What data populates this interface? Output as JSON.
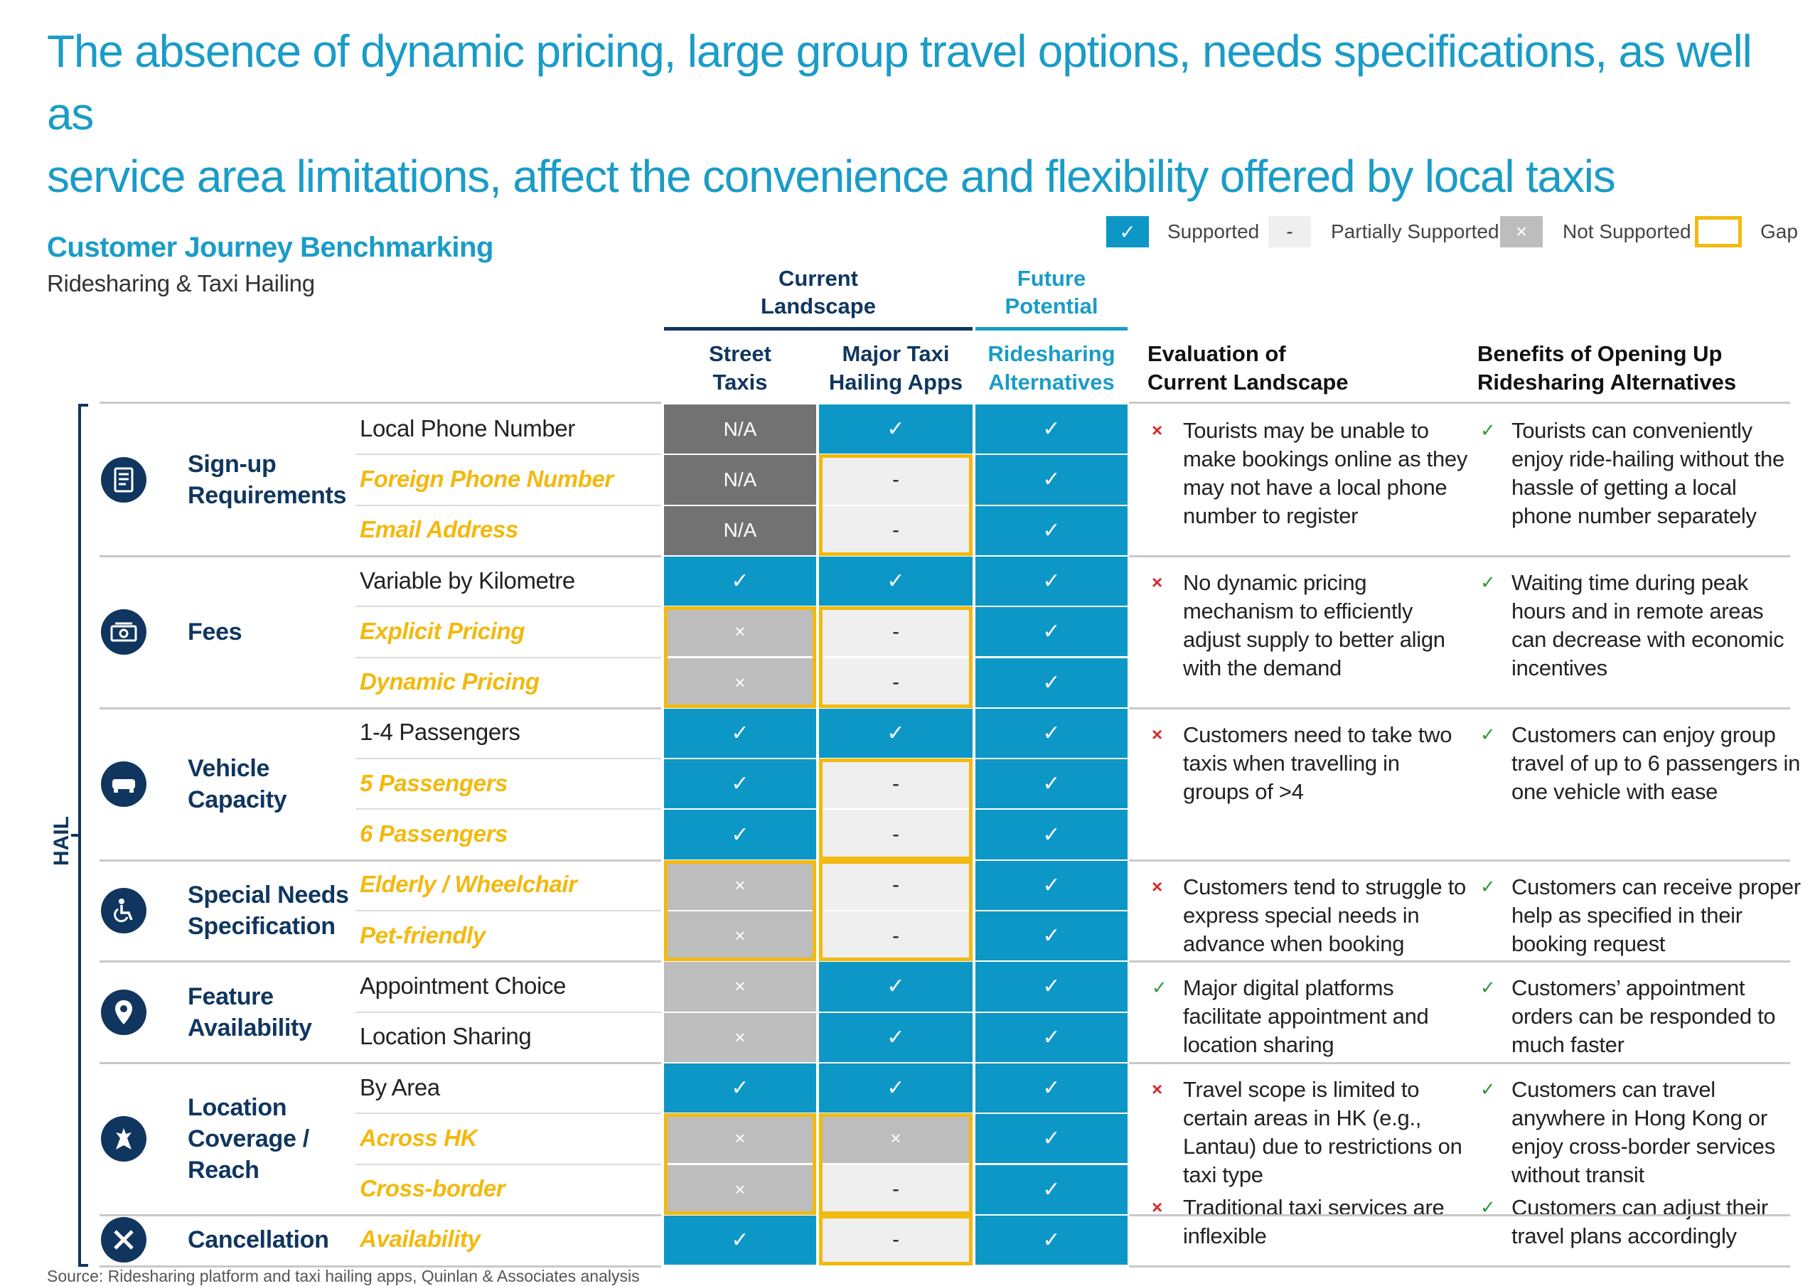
{
  "title": "The absence of dynamic pricing, large group travel options, needs specifications, as well as\nservice area limitations, affect the convenience and flexibility offered by local taxis",
  "subtitle": "Customer Journey Benchmarking",
  "subtitle2": "Ridesharing & Taxi Hailing",
  "legend": {
    "supported": "Supported",
    "partial": "Partially Supported",
    "not_supported": "Not Supported",
    "gap": "Gap",
    "check_symbol": "✓",
    "dash_symbol": "-",
    "x_symbol": "×"
  },
  "group_headers": {
    "current": "Current\nLandscape",
    "future": "Future\nPotential"
  },
  "columns": {
    "street": "Street\nTaxis",
    "major": "Major Taxi\nHailing Apps",
    "ride": "Ridesharing\nAlternatives",
    "eval": "Evaluation of\nCurrent Landscape",
    "benefit": "Benefits of Opening Up\nRidesharing Alternatives"
  },
  "side_label": "HAIL",
  "colors": {
    "supported": "#0d97c6",
    "partial": "#efefef",
    "not_supported": "#bdbdbd",
    "na": "#727272",
    "gap": "#f2b90f",
    "navy": "#10365f",
    "teal": "#1a9cc7"
  },
  "groups": [
    {
      "label": "Sign-up\nRequirements",
      "icon": "document-icon",
      "rows": [
        {
          "criterion": "Local Phone Number",
          "gap": false,
          "street": "N/A",
          "major": "✓",
          "ride": "✓"
        },
        {
          "criterion": "Foreign Phone Number",
          "gap": true,
          "street": "N/A",
          "major": "-",
          "ride": "✓"
        },
        {
          "criterion": "Email Address",
          "gap": true,
          "street": "N/A",
          "major": "-",
          "ride": "✓"
        }
      ],
      "eval": [
        {
          "mark": "×",
          "text": "Tourists may be unable to\nmake bookings online as they\nmay not have a local phone\nnumber to register"
        }
      ],
      "benefit": [
        {
          "mark": "✓",
          "text": "Tourists can conveniently\nenjoy ride-hailing without the\nhassle of getting a local\nphone number separately"
        }
      ]
    },
    {
      "label": "Fees",
      "icon": "cash-icon",
      "rows": [
        {
          "criterion": "Variable by Kilometre",
          "gap": false,
          "street": "✓",
          "major": "✓",
          "ride": "✓"
        },
        {
          "criterion": "Explicit Pricing",
          "gap": true,
          "street": "×",
          "major": "-",
          "ride": "✓"
        },
        {
          "criterion": "Dynamic Pricing",
          "gap": true,
          "street": "×",
          "major": "-",
          "ride": "✓"
        }
      ],
      "eval": [
        {
          "mark": "×",
          "text": "No dynamic pricing\nmechanism to efficiently\nadjust supply to better align\nwith the demand"
        }
      ],
      "benefit": [
        {
          "mark": "✓",
          "text": "Waiting time during peak\nhours and in remote areas\ncan decrease with economic\nincentives"
        }
      ]
    },
    {
      "label": "Vehicle\nCapacity",
      "icon": "vehicle-icon",
      "rows": [
        {
          "criterion": "1-4 Passengers",
          "gap": false,
          "street": "✓",
          "major": "✓",
          "ride": "✓"
        },
        {
          "criterion": "5 Passengers",
          "gap": true,
          "street": "✓",
          "major": "-",
          "ride": "✓"
        },
        {
          "criterion": "6 Passengers",
          "gap": true,
          "street": "✓",
          "major": "-",
          "ride": "✓"
        }
      ],
      "eval": [
        {
          "mark": "×",
          "text": "Customers need to take two\ntaxis when travelling in\ngroups of >4"
        }
      ],
      "benefit": [
        {
          "mark": "✓",
          "text": "Customers can enjoy group\ntravel of up to 6 passengers in\none vehicle with ease"
        }
      ]
    },
    {
      "label": "Special Needs\nSpecification",
      "icon": "wheelchair-icon",
      "rows": [
        {
          "criterion": "Elderly / Wheelchair",
          "gap": true,
          "street": "×",
          "major": "-",
          "ride": "✓"
        },
        {
          "criterion": "Pet-friendly",
          "gap": true,
          "street": "×",
          "major": "-",
          "ride": "✓"
        }
      ],
      "eval": [
        {
          "mark": "×",
          "text": "Customers tend to struggle to\nexpress special needs in\nadvance when booking"
        }
      ],
      "benefit": [
        {
          "mark": "✓",
          "text": "Customers can receive proper\nhelp as specified in their\nbooking request"
        }
      ]
    },
    {
      "label": "Feature\nAvailability",
      "icon": "location-pin-icon",
      "rows": [
        {
          "criterion": "Appointment Choice",
          "gap": false,
          "street": "×",
          "major": "✓",
          "ride": "✓"
        },
        {
          "criterion": "Location Sharing",
          "gap": false,
          "street": "×",
          "major": "✓",
          "ride": "✓"
        }
      ],
      "eval": [
        {
          "mark": "✓",
          "text": "Major digital platforms\nfacilitate appointment and\nlocation sharing"
        }
      ],
      "benefit": [
        {
          "mark": "✓",
          "text": "Customers’ appointment\norders can be responded to\nmuch faster"
        }
      ]
    },
    {
      "label": "Location\nCoverage /\nReach",
      "icon": "map-icon",
      "rows": [
        {
          "criterion": "By Area",
          "gap": false,
          "street": "✓",
          "major": "✓",
          "ride": "✓"
        },
        {
          "criterion": "Across HK",
          "gap": true,
          "street": "×",
          "major": "×",
          "ride": "✓"
        },
        {
          "criterion": "Cross-border",
          "gap": true,
          "street": "×",
          "major": "-",
          "ride": "✓"
        }
      ],
      "eval": [
        {
          "mark": "×",
          "text": "Travel scope is limited to\ncertain areas in HK (e.g.,\nLantau) due to restrictions on\ntaxi type"
        },
        {
          "mark": "×",
          "text": "Traditional taxi services are\ninflexible"
        }
      ],
      "benefit": [
        {
          "mark": "✓",
          "text": "Customers can travel\nanywhere in Hong Kong or\nenjoy cross-border services\nwithout transit"
        },
        {
          "mark": "✓",
          "text": "Customers can adjust their\ntravel plans accordingly"
        }
      ]
    },
    {
      "label": "Cancellation",
      "icon": "cancel-icon",
      "rows": [
        {
          "criterion": "Availability",
          "gap": true,
          "street": "✓",
          "major": "-",
          "ride": "✓"
        }
      ],
      "eval": [],
      "benefit": []
    }
  ],
  "source": "Source: Ridesharing platform and taxi hailing apps, Quinlan & Associates analysis"
}
